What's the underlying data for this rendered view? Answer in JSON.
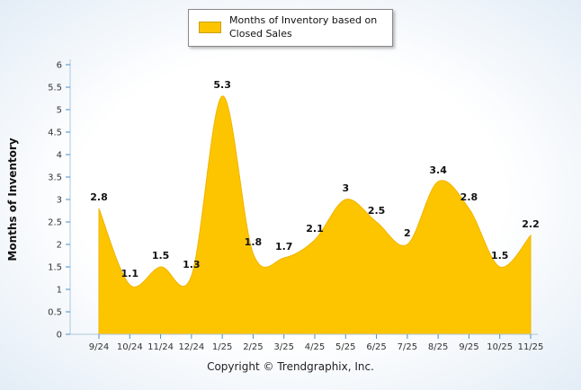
{
  "legend": {
    "label": "Months of Inventory based on Closed Sales"
  },
  "footer": {
    "copyright": "Copyright © Trendgraphix, Inc."
  },
  "chart_data": {
    "type": "area",
    "title": "",
    "xlabel": "",
    "ylabel": "Months of Inventory",
    "categories": [
      "9/24",
      "10/24",
      "11/24",
      "12/24",
      "1/25",
      "2/25",
      "3/25",
      "4/25",
      "5/25",
      "6/25",
      "7/25",
      "8/25",
      "9/25",
      "10/25",
      "11/25"
    ],
    "values": [
      2.8,
      1.1,
      1.5,
      1.3,
      5.3,
      1.8,
      1.7,
      2.1,
      3,
      2.5,
      2,
      3.4,
      2.8,
      1.5,
      2.2
    ],
    "point_labels": [
      "2.8",
      "1.1",
      "1.5",
      "1.3",
      "5.3",
      "1.8",
      "1.7",
      "2.1",
      "3",
      "2.5",
      "2",
      "3.4",
      "2.8",
      "1.5",
      "2.2"
    ],
    "ylim": [
      0,
      6
    ],
    "ytick_step": 0.5,
    "grid": false,
    "legend_position": "top",
    "colors": {
      "area": "#FDC500",
      "area_stroke": "#F0B400",
      "swatch_border": "#C9A000",
      "axis": "#AFC7DB",
      "tick": "#4D8FC4",
      "label": "#111111"
    }
  }
}
